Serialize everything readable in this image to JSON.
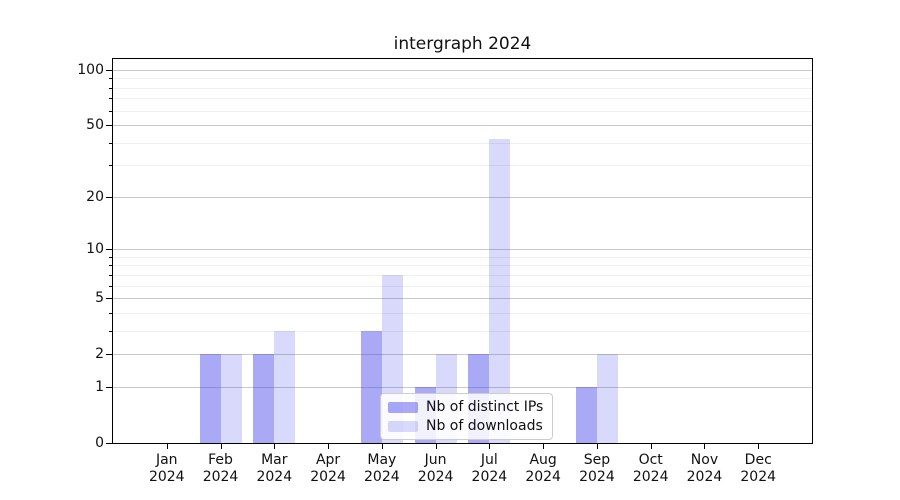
{
  "title": "intergraph 2024",
  "chart_data": {
    "type": "bar",
    "title": "intergraph 2024",
    "categories": [
      "Jan",
      "Feb",
      "Mar",
      "Apr",
      "May",
      "Jun",
      "Jul",
      "Aug",
      "Sep",
      "Oct",
      "Nov",
      "Dec"
    ],
    "x_year_label": "2024",
    "series": [
      {
        "name": "Nb of distinct IPs",
        "color": "#4040ec73",
        "values": [
          0,
          2,
          2,
          0,
          3,
          1,
          2,
          0,
          1,
          0,
          0,
          0
        ]
      },
      {
        "name": "Nb of downloads",
        "color": "#4040ec33",
        "values": [
          0,
          2,
          3,
          0,
          7,
          2,
          42,
          0,
          2,
          0,
          0,
          0
        ]
      }
    ],
    "y_scale": "log1p",
    "ylim": [
      0,
      113
    ],
    "y_ticks": [
      0,
      1,
      2,
      5,
      10,
      20,
      50,
      100
    ],
    "y_minor_ticks": [
      3,
      4,
      6,
      7,
      8,
      9,
      30,
      40,
      60,
      70,
      80,
      90
    ],
    "grid": true,
    "legend_position": "lower center"
  },
  "colors": {
    "background": "#ffffff",
    "grid_major": "#c9c9c9",
    "grid_minor": "#efefef",
    "axis": "#000000",
    "text": "#111111",
    "legend_border": "#cccccc"
  }
}
